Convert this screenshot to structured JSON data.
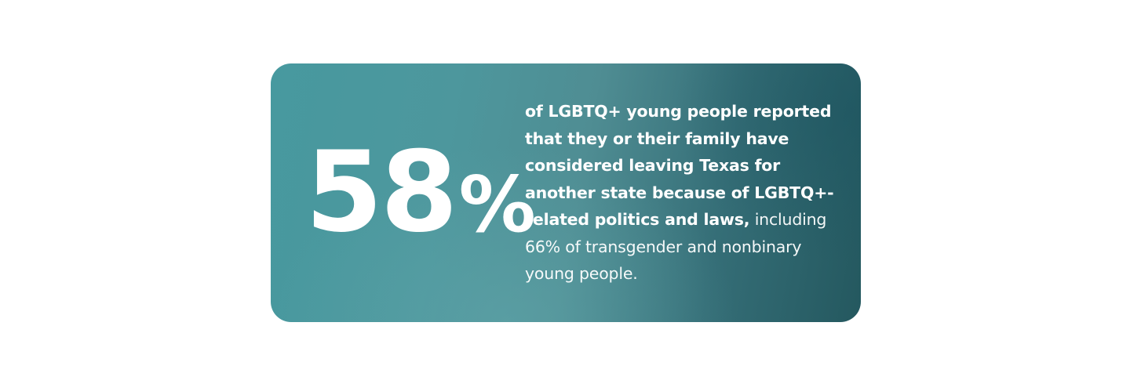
{
  "stat": {
    "number": "58",
    "unit": "%",
    "text_bold": "of LGBTQ+ young people reported that they or their family have considered leaving Texas for another state because of LGBTQ+-related politics and laws,",
    "text_regular": "including 66% of transgender and nonbinary young people."
  },
  "colors": {
    "card_left": "#47999f",
    "card_right": "#24585f",
    "text": "#ffffff",
    "page_background": "#ffffff"
  }
}
